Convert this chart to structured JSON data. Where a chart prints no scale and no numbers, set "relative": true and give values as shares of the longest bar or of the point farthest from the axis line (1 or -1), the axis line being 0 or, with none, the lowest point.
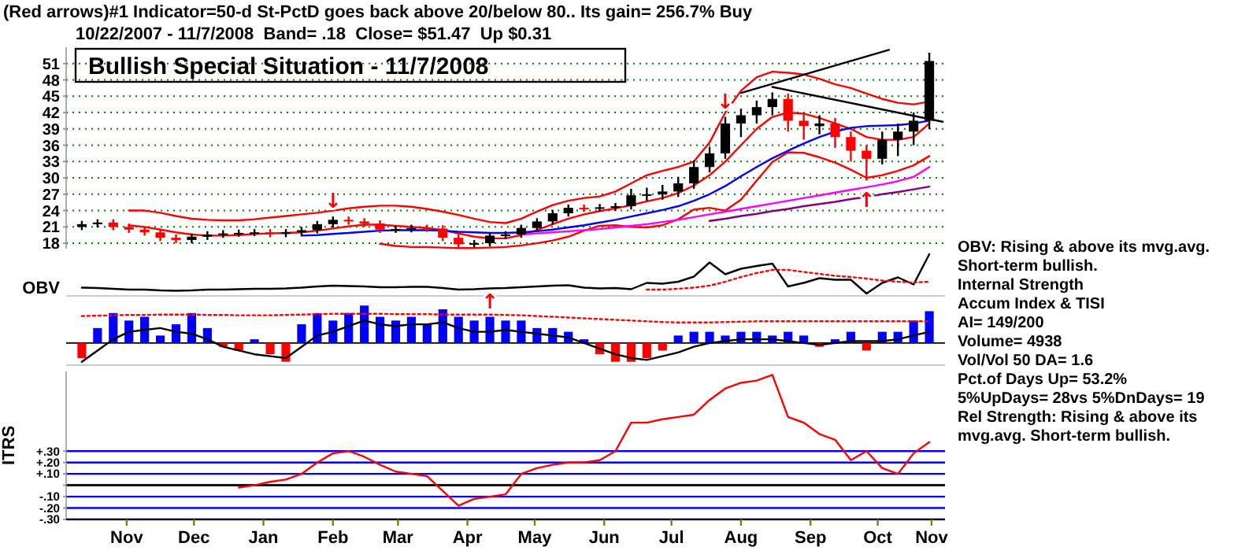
{
  "chart_data": [
    {
      "type": "candlestick",
      "title": "Bullish Special Situation - 11/7/2008",
      "subtitle": "10/22/2007 - 11/7/2008  Band= .18  Close= $51.47  Up $0.31",
      "annotations": [
        "(Red arrows)#1 Indicator=50-d St-PctD goes back above 20/below 80.. Its gain= 256.7% Buy",
        {
          "text": "↓",
          "x": "2008-02-15",
          "y": 22.9
        },
        {
          "text": "↓",
          "x": "2008-08-08",
          "y": 41.2
        },
        {
          "text": "↑",
          "x": "2008-10-10",
          "y": 29.5
        }
      ],
      "x": [
        "2007-10-26",
        "2007-11-02",
        "2007-11-09",
        "2007-11-16",
        "2007-11-23",
        "2007-11-30",
        "2007-12-07",
        "2007-12-14",
        "2007-12-21",
        "2007-12-28",
        "2008-01-04",
        "2008-01-11",
        "2008-01-18",
        "2008-01-25",
        "2008-02-01",
        "2008-02-08",
        "2008-02-15",
        "2008-02-22",
        "2008-02-29",
        "2008-03-07",
        "2008-03-14",
        "2008-03-21",
        "2008-03-28",
        "2008-04-04",
        "2008-04-11",
        "2008-04-18",
        "2008-04-25",
        "2008-05-02",
        "2008-05-09",
        "2008-05-16",
        "2008-05-23",
        "2008-05-30",
        "2008-06-06",
        "2008-06-13",
        "2008-06-20",
        "2008-06-27",
        "2008-07-04",
        "2008-07-11",
        "2008-07-18",
        "2008-07-25",
        "2008-08-01",
        "2008-08-08",
        "2008-08-15",
        "2008-08-22",
        "2008-08-29",
        "2008-09-05",
        "2008-09-12",
        "2008-09-19",
        "2008-09-26",
        "2008-10-03",
        "2008-10-10",
        "2008-10-17",
        "2008-10-24",
        "2008-10-31",
        "2008-11-07"
      ],
      "ohlc": [
        [
          21.0,
          22.1,
          20.4,
          21.5
        ],
        [
          21.5,
          22.4,
          20.9,
          21.8
        ],
        [
          21.8,
          22.4,
          20.4,
          21.0
        ],
        [
          21.0,
          21.6,
          19.9,
          20.5
        ],
        [
          20.5,
          21.1,
          19.4,
          20.0
        ],
        [
          20.0,
          20.6,
          18.4,
          19.0
        ],
        [
          19.0,
          19.6,
          18.0,
          18.6
        ],
        [
          18.6,
          19.8,
          18.0,
          19.2
        ],
        [
          19.2,
          20.2,
          18.6,
          19.6
        ],
        [
          19.6,
          20.4,
          19.0,
          19.8
        ],
        [
          19.8,
          20.5,
          19.2,
          19.9
        ],
        [
          19.9,
          20.6,
          19.3,
          20.0
        ],
        [
          20.0,
          20.6,
          19.1,
          19.7
        ],
        [
          19.7,
          20.6,
          19.1,
          20.0
        ],
        [
          20.0,
          21.0,
          19.4,
          20.4
        ],
        [
          20.4,
          22.1,
          19.8,
          21.5
        ],
        [
          21.5,
          22.9,
          20.9,
          22.3
        ],
        [
          22.3,
          22.9,
          21.4,
          22.0
        ],
        [
          22.0,
          22.6,
          21.0,
          21.6
        ],
        [
          21.6,
          22.2,
          19.9,
          20.5
        ],
        [
          20.5,
          21.2,
          19.9,
          20.6
        ],
        [
          20.6,
          21.4,
          20.0,
          20.8
        ],
        [
          20.8,
          21.4,
          20.1,
          20.7
        ],
        [
          20.7,
          21.3,
          18.4,
          19.0
        ],
        [
          19.0,
          19.6,
          17.2,
          17.8
        ],
        [
          17.8,
          18.6,
          17.2,
          18.0
        ],
        [
          18.0,
          20.0,
          17.4,
          19.4
        ],
        [
          19.4,
          20.2,
          18.8,
          19.6
        ],
        [
          19.6,
          21.4,
          19.0,
          20.8
        ],
        [
          20.8,
          22.6,
          20.2,
          22.0
        ],
        [
          22.0,
          24.1,
          21.4,
          23.5
        ],
        [
          23.5,
          25.1,
          22.9,
          24.5
        ],
        [
          24.5,
          25.1,
          23.8,
          24.4
        ],
        [
          24.4,
          25.2,
          23.8,
          24.6
        ],
        [
          24.6,
          25.4,
          24.0,
          24.8
        ],
        [
          24.8,
          28.0,
          24.2,
          26.8
        ],
        [
          26.8,
          28.2,
          25.8,
          27.0
        ],
        [
          27.0,
          28.7,
          26.0,
          27.5
        ],
        [
          27.5,
          30.2,
          26.5,
          29.0
        ],
        [
          29.0,
          33.2,
          28.0,
          32.0
        ],
        [
          32.0,
          35.7,
          31.0,
          34.5
        ],
        [
          34.5,
          41.2,
          33.5,
          40.0
        ],
        [
          40.0,
          42.7,
          37.5,
          41.5
        ],
        [
          41.5,
          44.2,
          40.0,
          43.0
        ],
        [
          43.0,
          45.7,
          41.5,
          44.5
        ],
        [
          44.5,
          45.5,
          38.5,
          40.5
        ],
        [
          40.5,
          42.0,
          37.0,
          39.5
        ],
        [
          39.5,
          41.5,
          38.0,
          40.0
        ],
        [
          40.0,
          41.0,
          35.5,
          37.5
        ],
        [
          37.5,
          38.5,
          33.0,
          35.0
        ],
        [
          35.0,
          36.0,
          29.5,
          33.5
        ],
        [
          33.5,
          38.5,
          32.5,
          37.0
        ],
        [
          37.0,
          40.0,
          34.0,
          38.5
        ],
        [
          38.5,
          42.0,
          36.0,
          40.5
        ],
        [
          40.5,
          53.0,
          39.0,
          51.47
        ]
      ],
      "colors": [
        "#000000",
        "#000000",
        "#ff0000",
        "#ff0000",
        "#ff0000",
        "#ff0000",
        "#ff0000",
        "#000000",
        "#000000",
        "#000000",
        "#000000",
        "#000000",
        "#ff0000",
        "#000000",
        "#000000",
        "#000000",
        "#000000",
        "#ff0000",
        "#ff0000",
        "#ff0000",
        "#000000",
        "#000000",
        "#ff0000",
        "#ff0000",
        "#ff0000",
        "#000000",
        "#000000",
        "#000000",
        "#000000",
        "#000000",
        "#000000",
        "#000000",
        "#ff0000",
        "#000000",
        "#000000",
        "#000000",
        "#000000",
        "#000000",
        "#000000",
        "#000000",
        "#000000",
        "#000000",
        "#000000",
        "#000000",
        "#000000",
        "#ff0000",
        "#ff0000",
        "#000000",
        "#ff0000",
        "#ff0000",
        "#ff0000",
        "#000000",
        "#000000",
        "#000000",
        "#000000"
      ],
      "series": [
        {
          "type": "line",
          "color": "#ff0000",
          "values": [
            null,
            null,
            null,
            24.0,
            24.0,
            23.6,
            23.0,
            22.5,
            22.3,
            22.2,
            22.2,
            22.4,
            22.7,
            23.0,
            23.3,
            23.6,
            24.0,
            24.4,
            24.7,
            24.9,
            24.9,
            24.7,
            24.3,
            23.8,
            23.2,
            22.5,
            21.9,
            21.7,
            22.5,
            23.8,
            25.0,
            25.8,
            26.3,
            26.6,
            27.5,
            29.0,
            30.5,
            31.3,
            32.0,
            33.0,
            36.5,
            42.0,
            46.0,
            48.5,
            49.5,
            49.3,
            49.0,
            48.2,
            47.2,
            46.5,
            45.5,
            44.5,
            43.8,
            43.5,
            44.0
          ]
        },
        {
          "type": "line",
          "color": "#ff0000",
          "values": [
            null,
            null,
            null,
            21.3,
            21.0,
            20.5,
            20.0,
            19.6,
            19.4,
            19.4,
            19.5,
            19.7,
            19.8,
            19.9,
            20.0,
            20.3,
            20.7,
            21.1,
            21.4,
            21.4,
            21.2,
            21.0,
            20.8,
            20.4,
            19.8,
            19.2,
            18.9,
            18.9,
            19.5,
            20.4,
            21.5,
            22.5,
            23.3,
            23.9,
            24.4,
            25.0,
            25.7,
            26.3,
            27.2,
            28.6,
            30.5,
            33.0,
            36.0,
            39.0,
            41.2,
            42.0,
            41.8,
            41.0,
            40.0,
            39.0,
            37.5,
            37.0,
            37.0,
            37.5,
            40.0
          ]
        },
        {
          "type": "line",
          "color": "#ff0000",
          "values": [
            null,
            null,
            null,
            null,
            null,
            null,
            null,
            null,
            null,
            null,
            null,
            null,
            null,
            null,
            null,
            null,
            null,
            null,
            null,
            17.9,
            17.5,
            17.3,
            17.3,
            17.2,
            17.1,
            17.1,
            17.2,
            17.3,
            17.6,
            18.0,
            18.5,
            19.2,
            20.3,
            21.2,
            21.3,
            21.0,
            20.9,
            21.3,
            22.4,
            24.2,
            24.5,
            24.0,
            26.0,
            29.5,
            32.9,
            34.7,
            34.6,
            33.8,
            32.8,
            31.5,
            30.0,
            30.5,
            31.3,
            32.3,
            34.0
          ]
        },
        {
          "type": "line",
          "color": "#0000ff",
          "values": [
            null,
            null,
            null,
            null,
            null,
            null,
            null,
            null,
            null,
            null,
            null,
            null,
            null,
            null,
            19.4,
            19.5,
            19.7,
            19.9,
            20.1,
            20.3,
            20.4,
            20.4,
            20.4,
            20.3,
            20.1,
            20.0,
            19.9,
            19.9,
            20.0,
            20.2,
            20.5,
            20.9,
            21.3,
            21.8,
            22.3,
            22.9,
            23.5,
            24.1,
            24.8,
            25.8,
            27.0,
            28.5,
            30.3,
            32.0,
            33.6,
            35.0,
            36.3,
            37.5,
            38.5,
            39.2,
            39.5,
            39.6,
            39.7,
            40.0,
            40.5
          ]
        },
        {
          "type": "line",
          "color": "#ff00ff",
          "values": [
            null,
            null,
            null,
            null,
            null,
            null,
            null,
            null,
            null,
            null,
            null,
            null,
            null,
            null,
            null,
            null,
            null,
            null,
            null,
            null,
            null,
            null,
            null,
            null,
            null,
            null,
            null,
            null,
            19.6,
            19.8,
            20.0,
            20.2,
            20.4,
            20.6,
            20.9,
            21.2,
            21.5,
            21.9,
            22.3,
            22.8,
            23.3,
            23.8,
            24.3,
            24.8,
            25.3,
            25.8,
            26.3,
            26.8,
            27.3,
            27.8,
            28.3,
            28.8,
            29.4,
            30.2,
            32.0
          ]
        },
        {
          "type": "line",
          "color": "#800080",
          "values": [
            null,
            null,
            null,
            null,
            null,
            null,
            null,
            null,
            null,
            null,
            null,
            null,
            null,
            null,
            null,
            null,
            null,
            null,
            null,
            null,
            null,
            null,
            null,
            null,
            null,
            null,
            null,
            null,
            null,
            null,
            null,
            null,
            null,
            null,
            null,
            null,
            null,
            null,
            null,
            null,
            22.1,
            22.5,
            23.0,
            23.4,
            23.9,
            24.3,
            24.8,
            25.2,
            25.6,
            26.1,
            26.5,
            27.0,
            27.4,
            27.9,
            28.4
          ]
        },
        {
          "type": "line",
          "color": "#000000",
          "x": [
            "2008-08-15",
            "2008-10-20"
          ],
          "values": [
            45.6,
            53.5
          ]
        },
        {
          "type": "line",
          "color": "#000000",
          "x": [
            "2008-08-29",
            "2008-11-13"
          ],
          "values": [
            46.7,
            40.3
          ]
        }
      ],
      "xlim": [
        "2007-10-19",
        "2008-11-14"
      ],
      "ylim": [
        17,
        54
      ],
      "yticks": [
        18,
        21,
        24,
        27,
        30,
        33,
        36,
        39,
        42,
        45,
        48,
        51
      ],
      "grid": "y",
      "tick_labels": "y"
    },
    {
      "type": "line",
      "relative": true,
      "tick_labels": false,
      "xlim": [
        "2007-10-19",
        "2008-11-14"
      ],
      "annotations": [
        "OBV: Rising & above its mvg.avg. Short-term bullish."
      ],
      "x": [
        "2007-10-26",
        "2007-11-02",
        "2007-11-09",
        "2007-11-16",
        "2007-11-23",
        "2007-11-30",
        "2007-12-07",
        "2007-12-14",
        "2007-12-21",
        "2007-12-28",
        "2008-01-04",
        "2008-01-11",
        "2008-01-18",
        "2008-01-25",
        "2008-02-01",
        "2008-02-08",
        "2008-02-15",
        "2008-02-22",
        "2008-02-29",
        "2008-03-07",
        "2008-03-14",
        "2008-03-21",
        "2008-03-28",
        "2008-04-04",
        "2008-04-11",
        "2008-04-18",
        "2008-04-25",
        "2008-05-02",
        "2008-05-09",
        "2008-05-16",
        "2008-05-23",
        "2008-05-30",
        "2008-06-06",
        "2008-06-13",
        "2008-06-20",
        "2008-06-27",
        "2008-07-04",
        "2008-07-11",
        "2008-07-18",
        "2008-07-25",
        "2008-08-01",
        "2008-08-08",
        "2008-08-15",
        "2008-08-22",
        "2008-08-29",
        "2008-09-05",
        "2008-09-12",
        "2008-09-19",
        "2008-09-26",
        "2008-10-03",
        "2008-10-10",
        "2008-10-17",
        "2008-10-24",
        "2008-10-31",
        "2008-11-07"
      ],
      "series": [
        {
          "name": "OBV",
          "color": "#000000",
          "values": [
            0.15,
            0.14,
            0.12,
            0.1,
            0.1,
            0.08,
            0.07,
            0.08,
            0.1,
            0.1,
            0.11,
            0.12,
            0.12,
            0.13,
            0.15,
            0.18,
            0.2,
            0.19,
            0.18,
            0.16,
            0.16,
            0.17,
            0.17,
            0.14,
            0.1,
            0.11,
            0.13,
            0.14,
            0.16,
            0.18,
            0.2,
            0.21,
            0.15,
            0.13,
            0.14,
            0.11,
            0.27,
            0.25,
            0.3,
            0.43,
            0.79,
            0.49,
            0.63,
            0.7,
            0.76,
            0.18,
            0.27,
            0.39,
            0.35,
            0.35,
            0,
            0.27,
            0.41,
            0.23,
            1
          ]
        },
        {
          "color": "#ff0000",
          "line_style": "dotted",
          "values": [
            null,
            null,
            null,
            null,
            null,
            null,
            null,
            null,
            null,
            null,
            null,
            null,
            null,
            null,
            null,
            null,
            null,
            null,
            null,
            null,
            null,
            null,
            null,
            null,
            null,
            null,
            null,
            null,
            null,
            null,
            null,
            null,
            null,
            null,
            null,
            null,
            0.1,
            0.1,
            0.12,
            0.15,
            0.2,
            0.3,
            0.42,
            0.52,
            0.6,
            0.6,
            0.55,
            0.5,
            0.45,
            0.42,
            0.38,
            0.33,
            0.3,
            0.28,
            0.3
          ]
        }
      ]
    },
    {
      "type": "bar",
      "relative": true,
      "tick_labels": false,
      "xlim": [
        "2007-10-19",
        "2008-11-14"
      ],
      "annotations": [
        "Internal Strength",
        "Accum Index & TISI",
        "AI= 149/200",
        "Volume= 4938",
        "Vol/Vol 50 DA= 1.6",
        "Pct.of Days Up= 53.2%",
        "5%UpDays= 28vs 5%DnDays= 19",
        {
          "text": "↑",
          "x": "2008-04-25",
          "y": 0.7
        }
      ],
      "x": [
        "2007-10-26",
        "2007-11-02",
        "2007-11-09",
        "2007-11-16",
        "2007-11-23",
        "2007-11-30",
        "2007-12-07",
        "2007-12-14",
        "2007-12-21",
        "2007-12-28",
        "2008-01-04",
        "2008-01-11",
        "2008-01-18",
        "2008-01-25",
        "2008-02-01",
        "2008-02-08",
        "2008-02-15",
        "2008-02-22",
        "2008-02-29",
        "2008-03-07",
        "2008-03-14",
        "2008-03-21",
        "2008-03-28",
        "2008-04-04",
        "2008-04-11",
        "2008-04-18",
        "2008-04-25",
        "2008-05-02",
        "2008-05-09",
        "2008-05-16",
        "2008-05-23",
        "2008-05-30",
        "2008-06-06",
        "2008-06-13",
        "2008-06-20",
        "2008-06-27",
        "2008-07-04",
        "2008-07-11",
        "2008-07-18",
        "2008-07-25",
        "2008-08-01",
        "2008-08-08",
        "2008-08-15",
        "2008-08-22",
        "2008-08-29",
        "2008-09-05",
        "2008-09-12",
        "2008-09-19",
        "2008-09-26",
        "2008-10-03",
        "2008-10-10",
        "2008-10-17",
        "2008-10-24",
        "2008-10-31",
        "2008-11-07"
      ],
      "series": [
        {
          "type": "bar",
          "colors": [
            "#ff0000",
            "#0000ff",
            "#0000ff",
            "#0000ff",
            "#0000ff",
            "#0000ff",
            "#0000ff",
            "#0000ff",
            "#0000ff",
            "#ff0000",
            "#ff0000",
            "#0000ff",
            "#ff0000",
            "#ff0000",
            "#0000ff",
            "#0000ff",
            "#0000ff",
            "#0000ff",
            "#0000ff",
            "#0000ff",
            "#0000ff",
            "#0000ff",
            "#0000ff",
            "#0000ff",
            "#0000ff",
            "#0000ff",
            "#0000ff",
            "#0000ff",
            "#0000ff",
            "#0000ff",
            "#0000ff",
            "#0000ff",
            "#0000ff",
            "#ff0000",
            "#ff0000",
            "#ff0000",
            "#ff0000",
            "#ff0000",
            "#0000ff",
            "#0000ff",
            "#0000ff",
            "#0000ff",
            "#0000ff",
            "#0000ff",
            "#0000ff",
            "#0000ff",
            "#0000ff",
            "#ff0000",
            "#0000ff",
            "#0000ff",
            "#ff0000",
            "#0000ff",
            "#0000ff",
            "#0000ff",
            "#0000ff"
          ],
          "values": [
            -0.4,
            0.4,
            0.8,
            0.6,
            0.7,
            0.2,
            0.5,
            0.8,
            0.4,
            -0.1,
            -0.2,
            0.1,
            -0.3,
            -0.5,
            0.5,
            0.8,
            0.6,
            0.8,
            1.0,
            0.7,
            0.6,
            0.7,
            0.5,
            0.9,
            0.7,
            0.6,
            0.7,
            0.6,
            0.6,
            0.4,
            0.4,
            0.3,
            0.1,
            -0.3,
            -0.5,
            -0.5,
            -0.4,
            -0.2,
            0.2,
            0.3,
            0.3,
            0.2,
            0.3,
            0.3,
            0.2,
            0.3,
            0.2,
            -0.1,
            0.1,
            0.3,
            -0.2,
            0.3,
            0.3,
            0.6,
            0.85
          ]
        },
        {
          "type": "line",
          "color": "#000000",
          "values": [
            -0.5,
            -0.2,
            0.1,
            0.3,
            0.35,
            0.4,
            0.3,
            0.25,
            0.1,
            -0.1,
            -0.2,
            -0.3,
            -0.35,
            -0.4,
            -0.1,
            0.2,
            0.3,
            0.45,
            0.6,
            0.5,
            0.45,
            0.5,
            0.5,
            0.55,
            0.4,
            0.3,
            0.3,
            0.35,
            0.3,
            0.25,
            0.2,
            0.15,
            0.0,
            -0.15,
            -0.3,
            -0.4,
            -0.45,
            -0.35,
            -0.25,
            -0.1,
            0.0,
            0.05,
            0.1,
            0.1,
            0.1,
            0.05,
            0.0,
            -0.05,
            0.0,
            0.05,
            0.05,
            0.05,
            0.1,
            0.2,
            0.3
          ]
        },
        {
          "type": "line",
          "color": "#ff0000",
          "line_style": "dotted",
          "values": [
            0.72,
            0.73,
            0.74,
            0.75,
            0.75,
            0.76,
            0.76,
            0.76,
            0.75,
            0.75,
            0.74,
            0.74,
            0.74,
            0.75,
            0.76,
            0.77,
            0.78,
            0.78,
            0.78,
            0.78,
            0.77,
            0.77,
            0.77,
            0.76,
            0.76,
            0.76,
            0.76,
            0.75,
            0.74,
            0.72,
            0.7,
            0.68,
            0.66,
            0.64,
            0.62,
            0.6,
            0.58,
            0.56,
            0.55,
            0.55,
            0.55,
            0.56,
            0.57,
            0.58,
            0.58,
            0.58,
            0.58,
            0.58,
            0.58,
            0.58,
            0.58,
            0.58,
            0.58,
            0.58,
            0.58
          ]
        }
      ]
    },
    {
      "type": "line",
      "ylabel": "ITRS",
      "annotations": [
        "Rel Strength: Rising & above its mvg.avg. Short-term bullish."
      ],
      "x": [
        "2008-01-04",
        "2008-01-11",
        "2008-01-18",
        "2008-01-25",
        "2008-02-01",
        "2008-02-08",
        "2008-02-15",
        "2008-02-22",
        "2008-02-29",
        "2008-03-07",
        "2008-03-14",
        "2008-03-21",
        "2008-03-28",
        "2008-04-04",
        "2008-04-11",
        "2008-04-18",
        "2008-04-25",
        "2008-05-02",
        "2008-05-09",
        "2008-05-16",
        "2008-05-23",
        "2008-05-30",
        "2008-06-06",
        "2008-06-13",
        "2008-06-20",
        "2008-06-27",
        "2008-07-04",
        "2008-07-11",
        "2008-07-18",
        "2008-07-25",
        "2008-08-01",
        "2008-08-08",
        "2008-08-15",
        "2008-08-22",
        "2008-08-29",
        "2008-09-05",
        "2008-09-12",
        "2008-09-19",
        "2008-09-26",
        "2008-10-03",
        "2008-10-10",
        "2008-10-17",
        "2008-10-24",
        "2008-10-31",
        "2008-11-07"
      ],
      "series": [
        {
          "color": "#ff0000",
          "values": [
            -0.02,
            0.0,
            0.03,
            0.05,
            0.1,
            0.2,
            0.28,
            0.3,
            0.25,
            0.18,
            0.12,
            0.1,
            0.08,
            -0.05,
            -0.18,
            -0.12,
            -0.1,
            -0.08,
            0.1,
            0.15,
            0.18,
            0.2,
            0.2,
            0.22,
            0.3,
            0.55,
            0.55,
            0.58,
            0.6,
            0.62,
            0.75,
            0.85,
            0.9,
            0.92,
            0.97,
            0.6,
            0.55,
            0.45,
            0.4,
            0.22,
            0.3,
            0.15,
            0.1,
            0.28,
            0.38
          ]
        }
      ],
      "xlim": [
        "2007-10-19",
        "2008-11-14"
      ],
      "xticks": [
        {
          "value": "2007-11-15",
          "label": "Nov"
        },
        {
          "value": "2007-12-15",
          "label": "Dec"
        },
        {
          "value": "2008-01-15",
          "label": "Jan"
        },
        {
          "value": "2008-02-15",
          "label": "Feb"
        },
        {
          "value": "2008-03-15",
          "label": "Mar"
        },
        {
          "value": "2008-04-15",
          "label": "Apr"
        },
        {
          "value": "2008-05-15",
          "label": "May"
        },
        {
          "value": "2008-06-15",
          "label": "Jun"
        },
        {
          "value": "2008-07-15",
          "label": "Jul"
        },
        {
          "value": "2008-08-15",
          "label": "Aug"
        },
        {
          "value": "2008-09-15",
          "label": "Sep"
        },
        {
          "value": "2008-10-15",
          "label": "Oct"
        },
        {
          "value": "2008-11-08",
          "label": "Nov"
        }
      ],
      "ylim": [
        -0.3,
        1.0
      ],
      "yticks": [
        {
          "value": 0.3,
          "label": "+.30"
        },
        {
          "value": 0.2,
          "label": "+.20"
        },
        {
          "value": 0.1,
          "label": "+.10"
        },
        {
          "value": 0,
          "label": null
        },
        {
          "value": -0.1,
          "label": "-.10"
        },
        {
          "value": -0.2,
          "label": "-.20"
        },
        {
          "value": -0.3,
          "label": "-.30"
        }
      ],
      "grid": "y",
      "ref_lines": [
        {
          "axis": "y",
          "value": 0,
          "color": "#000000"
        }
      ]
    }
  ]
}
